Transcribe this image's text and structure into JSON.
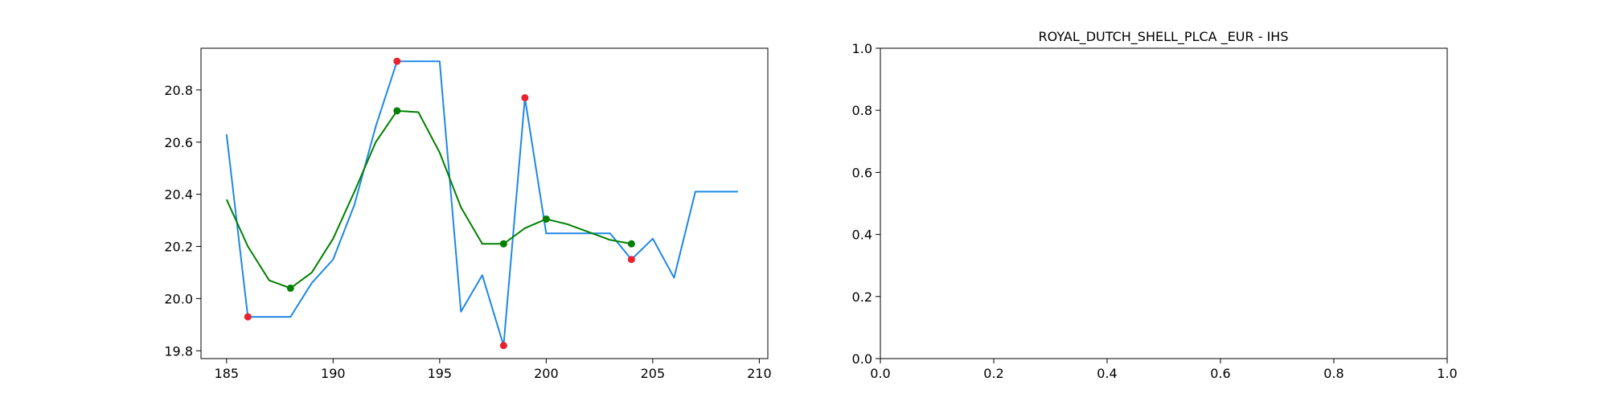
{
  "chart_data": [
    {
      "type": "line",
      "title": "",
      "xlabel": "",
      "ylabel": "",
      "xlim": [
        183.8,
        210.4
      ],
      "ylim": [
        19.77,
        20.96
      ],
      "x_ticks": [
        185,
        190,
        195,
        200,
        205,
        210
      ],
      "y_ticks": [
        19.8,
        20.0,
        20.2,
        20.4,
        20.6,
        20.8
      ],
      "grid": false,
      "legend": "none",
      "colors": {
        "price": "#1e88e5",
        "smooth": "#008000",
        "extrema": "#e8222f",
        "smooth_extrema": "#008000"
      },
      "series": [
        {
          "x": [
            185,
            186,
            187,
            188,
            189,
            190,
            191,
            192,
            193,
            194,
            195,
            196,
            197,
            198,
            199,
            200,
            201,
            202,
            203,
            204,
            205,
            206,
            207,
            208,
            209
          ],
          "values": [
            20.63,
            19.93,
            19.93,
            19.93,
            20.06,
            20.15,
            20.36,
            20.66,
            20.91,
            20.91,
            20.91,
            19.95,
            20.09,
            19.82,
            20.77,
            20.25,
            20.25,
            20.25,
            20.25,
            20.15,
            20.23,
            20.08,
            20.41,
            20.41,
            20.41
          ]
        },
        {
          "x": [
            185,
            186,
            187,
            188,
            189,
            190,
            191,
            192,
            193,
            194,
            195,
            196,
            197,
            198,
            199,
            200,
            201,
            202,
            203,
            204
          ],
          "values": [
            20.38,
            20.2,
            20.07,
            20.04,
            20.1,
            20.23,
            20.41,
            20.6,
            20.72,
            20.715,
            20.56,
            20.35,
            20.21,
            20.21,
            20.27,
            20.305,
            20.285,
            20.255,
            20.225,
            20.21
          ]
        }
      ],
      "extrema_points": [
        {
          "x": 186,
          "y": 19.93
        },
        {
          "x": 193,
          "y": 20.91
        },
        {
          "x": 198,
          "y": 19.82
        },
        {
          "x": 199,
          "y": 20.77
        },
        {
          "x": 204,
          "y": 20.15
        }
      ],
      "smooth_extrema_points": [
        {
          "x": 188,
          "y": 20.04
        },
        {
          "x": 193,
          "y": 20.72
        },
        {
          "x": 198,
          "y": 20.21
        },
        {
          "x": 200,
          "y": 20.305
        },
        {
          "x": 204,
          "y": 20.21
        }
      ]
    },
    {
      "type": "line",
      "title": "ROYAL_DUTCH_SHELL_PLCA _EUR - IHS",
      "xlabel": "",
      "ylabel": "",
      "xlim": [
        0.0,
        1.0
      ],
      "ylim": [
        0.0,
        1.0
      ],
      "x_ticks": [
        0.0,
        0.2,
        0.4,
        0.6,
        0.8,
        1.0
      ],
      "y_ticks": [
        0.0,
        0.2,
        0.4,
        0.6,
        0.8,
        1.0
      ],
      "grid": false,
      "legend": "none",
      "series": []
    }
  ]
}
